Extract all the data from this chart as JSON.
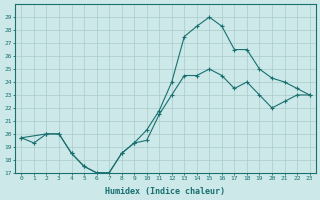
{
  "xlabel": "Humidex (Indice chaleur)",
  "bg_color": "#cce8e8",
  "line_color": "#1a7070",
  "grid_color": "#aacccc",
  "series": [
    {
      "x": [
        0,
        1,
        2,
        3,
        4,
        5,
        6,
        7,
        8,
        9,
        10,
        11,
        12,
        13,
        14,
        15,
        16,
        17,
        18,
        19,
        20,
        21,
        22,
        23
      ],
      "y": [
        19.7,
        19.3,
        20.0,
        20.0,
        18.5,
        17.5,
        17.0,
        17.0,
        18.5,
        19.3,
        19.5,
        21.5,
        23.0,
        24.5,
        24.5,
        25.0,
        24.5,
        23.5,
        24.0,
        23.0,
        22.0,
        22.5,
        23.0,
        23.0
      ]
    },
    {
      "x": [
        0,
        2,
        3,
        4,
        5,
        6,
        7,
        8,
        9,
        10,
        11,
        12,
        13,
        14,
        15,
        16,
        17,
        18,
        19,
        20,
        21,
        22,
        23
      ],
      "y": [
        19.7,
        20.0,
        20.0,
        18.5,
        17.5,
        17.0,
        17.0,
        18.5,
        19.3,
        20.3,
        21.8,
        24.0,
        27.5,
        28.3,
        29.0,
        28.3,
        26.5,
        26.5,
        25.0,
        24.3,
        24.0,
        23.5,
        23.0
      ]
    }
  ],
  "xlim": [
    -0.5,
    23.5
  ],
  "ylim": [
    17,
    30
  ],
  "yticks": [
    17,
    18,
    19,
    20,
    21,
    22,
    23,
    24,
    25,
    26,
    27,
    28,
    29
  ],
  "xticks": [
    0,
    1,
    2,
    3,
    4,
    5,
    6,
    7,
    8,
    9,
    10,
    11,
    12,
    13,
    14,
    15,
    16,
    17,
    18,
    19,
    20,
    21,
    22,
    23
  ]
}
